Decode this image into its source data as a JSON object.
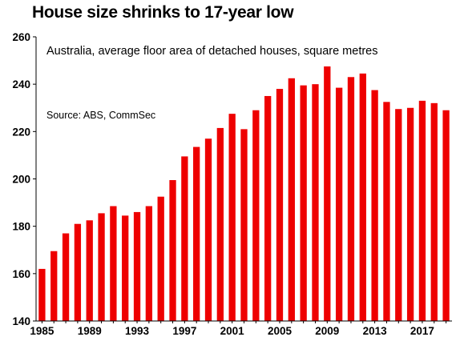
{
  "chart_data": {
    "type": "bar",
    "title": "House size shrinks to 17-year low",
    "subtitle": "Australia, average floor area of detached houses, square metres",
    "source": "Source: ABS, CommSec",
    "x": [
      1985,
      1986,
      1987,
      1988,
      1989,
      1990,
      1991,
      1992,
      1993,
      1994,
      1995,
      1996,
      1997,
      1998,
      1999,
      2000,
      2001,
      2002,
      2003,
      2004,
      2005,
      2006,
      2007,
      2008,
      2009,
      2010,
      2011,
      2012,
      2013,
      2014,
      2015,
      2016,
      2017,
      2018,
      2019
    ],
    "values": [
      162,
      169.5,
      177,
      181,
      182.5,
      185.5,
      188.5,
      184.5,
      186,
      188.5,
      192.5,
      199.5,
      209.5,
      213.5,
      217,
      221.5,
      227.5,
      221,
      229,
      235,
      238,
      242.5,
      239.5,
      240,
      247.5,
      238.5,
      243,
      244.5,
      237.5,
      232.5,
      229.5,
      230,
      233,
      232,
      229
    ],
    "xtick_labels": [
      "1985",
      "1989",
      "1993",
      "1997",
      "2001",
      "2005",
      "2009",
      "2013",
      "2017"
    ],
    "ytick_labels": [
      "140",
      "160",
      "180",
      "200",
      "220",
      "240",
      "260"
    ],
    "ylim": [
      140,
      260
    ],
    "grid": false,
    "bar_color": "#ee0000"
  }
}
